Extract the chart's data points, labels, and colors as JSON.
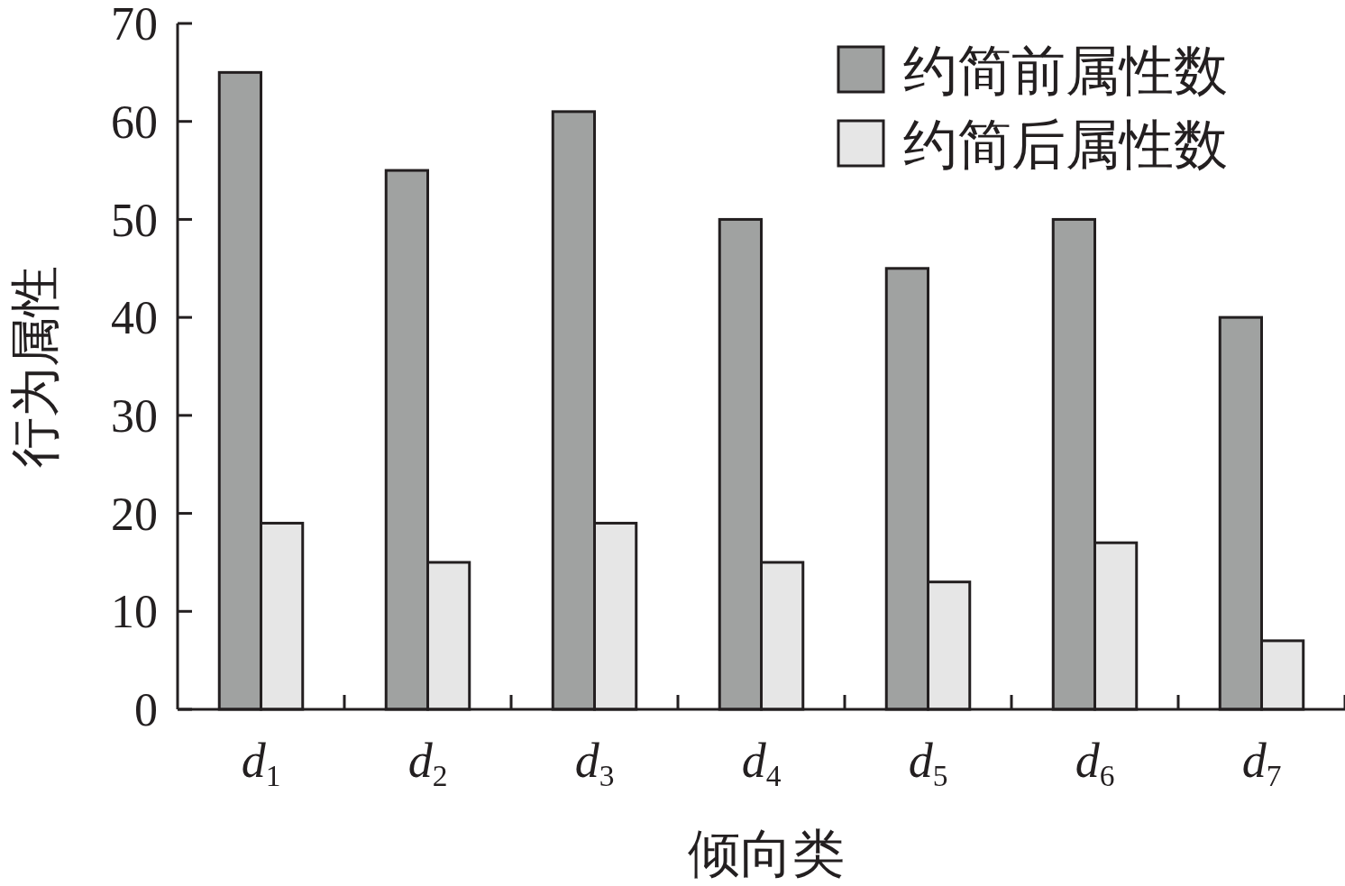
{
  "chart_data": {
    "type": "bar",
    "xlabel": "倾向类",
    "ylabel": "行为属性",
    "categories": [
      "d$_{1}$",
      "d$_{2}$",
      "d$_{3}$",
      "d$_{4}$",
      "d$_{5}$",
      "d$_{6}$",
      "d$_{7}$"
    ],
    "series": [
      {
        "name": "约简前属性数",
        "color": "#a0a2a1",
        "values": [
          65,
          55,
          61,
          50,
          45,
          50,
          40
        ]
      },
      {
        "name": "约简后属性数",
        "color": "#e6e6e6",
        "values": [
          19,
          15,
          19,
          15,
          13,
          17,
          7
        ]
      }
    ],
    "ylim": [
      0,
      70
    ],
    "yticks": [
      0,
      10,
      20,
      30,
      40,
      50,
      60,
      70
    ],
    "grid": false,
    "legend": "top right"
  }
}
